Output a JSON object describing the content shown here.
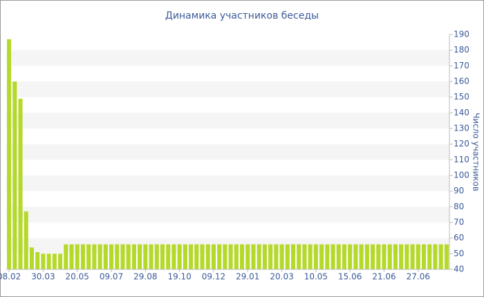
{
  "chart_data": {
    "type": "bar",
    "title": "Динамика участников беседы",
    "y_label": "Число участников",
    "categories": [
      "08.02",
      null,
      null,
      null,
      null,
      null,
      "30.03",
      null,
      null,
      null,
      null,
      null,
      "20.05",
      null,
      null,
      null,
      null,
      null,
      "09.07",
      null,
      null,
      null,
      null,
      null,
      "29.08",
      null,
      null,
      null,
      null,
      null,
      "19.10",
      null,
      null,
      null,
      null,
      null,
      "09.12",
      null,
      null,
      null,
      null,
      null,
      "29.01",
      null,
      null,
      null,
      null,
      null,
      "20.03",
      null,
      null,
      null,
      null,
      null,
      "10.05",
      null,
      null,
      null,
      null,
      null,
      "15.06",
      null,
      null,
      null,
      null,
      null,
      "21.06",
      null,
      null,
      null,
      null,
      null,
      "27.06",
      null,
      null,
      null,
      null,
      null
    ],
    "values": [
      187,
      160,
      149,
      77,
      54,
      51,
      50,
      50,
      50,
      50,
      56,
      56,
      56,
      56,
      56,
      56,
      56,
      56,
      56,
      56,
      56,
      56,
      56,
      56,
      56,
      56,
      56,
      56,
      56,
      56,
      56,
      56,
      56,
      56,
      56,
      56,
      56,
      56,
      56,
      56,
      56,
      56,
      56,
      56,
      56,
      56,
      56,
      56,
      56,
      56,
      56,
      56,
      56,
      56,
      56,
      56,
      56,
      56,
      56,
      56,
      56,
      56,
      56,
      56,
      56,
      56,
      56,
      56,
      56,
      56,
      56,
      56,
      56,
      56,
      56,
      56,
      56,
      56
    ],
    "color": "#b5d92b",
    "ylim": [
      40,
      190
    ],
    "yticks": [
      40,
      50,
      60,
      70,
      80,
      90,
      100,
      110,
      120,
      130,
      140,
      150,
      160,
      170,
      180,
      190
    ],
    "grid": true
  }
}
